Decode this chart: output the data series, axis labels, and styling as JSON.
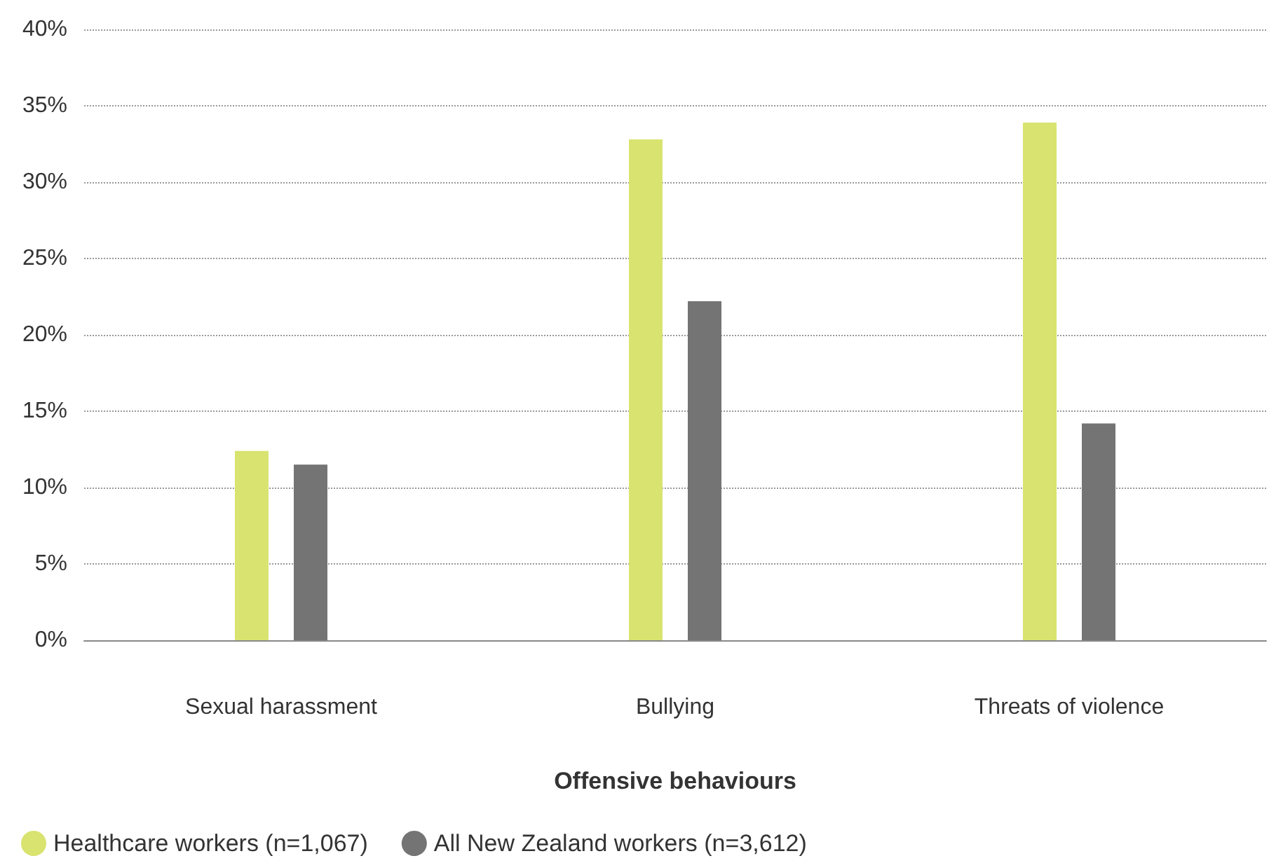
{
  "chart_data": {
    "type": "bar",
    "xlabel": "Offensive behaviours",
    "categories": [
      "Sexual harassment",
      "Bullying",
      "Threats of violence"
    ],
    "series": [
      {
        "name": "Healthcare workers (n=1,067)",
        "color": "#d9e36f",
        "values": [
          12.4,
          32.8,
          33.9
        ]
      },
      {
        "name": "All New Zealand workers (n=3,612)",
        "color": "#747474",
        "values": [
          11.5,
          22.2,
          14.2
        ]
      }
    ],
    "ylim": [
      0,
      40
    ],
    "yticks": [
      {
        "value": 0,
        "label": "0%"
      },
      {
        "value": 5,
        "label": "5%"
      },
      {
        "value": 10,
        "label": "10%"
      },
      {
        "value": 15,
        "label": "15%"
      },
      {
        "value": 20,
        "label": "20%"
      },
      {
        "value": 25,
        "label": "25%"
      },
      {
        "value": 30,
        "label": "30%"
      },
      {
        "value": 35,
        "label": "35%"
      },
      {
        "value": 40,
        "label": "40%"
      }
    ],
    "grid": "y",
    "legend": "bottom left",
    "marker": "circle"
  }
}
